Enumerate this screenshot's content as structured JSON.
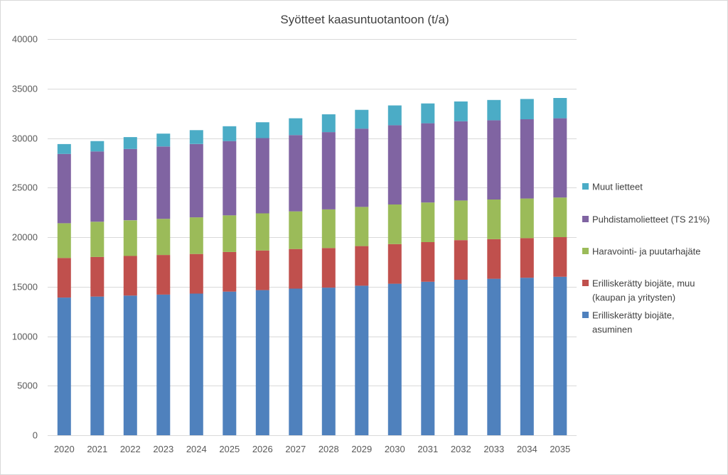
{
  "chart_data": {
    "type": "bar",
    "stacked": true,
    "title": "Syötteet kaasuntuotantoon (t/a)",
    "xlabel": "",
    "ylabel": "",
    "ylim": [
      0,
      40000
    ],
    "yticks": [
      0,
      5000,
      10000,
      15000,
      20000,
      25000,
      30000,
      35000,
      40000
    ],
    "grid": true,
    "legend_position": "right",
    "categories": [
      "2020",
      "2021",
      "2022",
      "2023",
      "2024",
      "2025",
      "2026",
      "2027",
      "2028",
      "2029",
      "2030",
      "2031",
      "2032",
      "2033",
      "2034",
      "2035"
    ],
    "series": [
      {
        "name": "Erilliskerätty biojäte, asuminen",
        "legend_lines": [
          "Erilliskerätty biojäte,",
          "asuminen"
        ],
        "color": "#4f81bd",
        "values": [
          13900,
          14000,
          14100,
          14200,
          14300,
          14500,
          14650,
          14800,
          14900,
          15100,
          15300,
          15500,
          15700,
          15800,
          15900,
          16000
        ]
      },
      {
        "name": "Erilliskerätty biojäte, muu (kaupan ja yritysten)",
        "legend_lines": [
          "Erilliskerätty biojäte, muu",
          "(kaupan ja yritysten)"
        ],
        "color": "#c0504d",
        "values": [
          4000,
          4000,
          4000,
          4000,
          4000,
          4000,
          4000,
          4000,
          4000,
          4000,
          4000,
          4000,
          4000,
          4000,
          4000,
          4000
        ]
      },
      {
        "name": "Haravointi- ja puutarhajäte",
        "legend_lines": [
          "Haravointi- ja puutarhajäte"
        ],
        "color": "#9bbb59",
        "values": [
          3500,
          3550,
          3600,
          3650,
          3700,
          3700,
          3750,
          3800,
          3900,
          3950,
          4000,
          4000,
          4000,
          4000,
          4000,
          4000
        ]
      },
      {
        "name": "Puhdistamolietteet (TS 21%)",
        "legend_lines": [
          "Puhdistamolietteet (TS 21%)"
        ],
        "color": "#8064a2",
        "values": [
          7000,
          7100,
          7200,
          7300,
          7400,
          7500,
          7600,
          7700,
          7800,
          7900,
          8000,
          8000,
          8000,
          8000,
          8000,
          8000
        ]
      },
      {
        "name": "Muut lietteet",
        "legend_lines": [
          "Muut lietteet"
        ],
        "color": "#4bacc6",
        "values": [
          1000,
          1050,
          1200,
          1300,
          1400,
          1500,
          1600,
          1700,
          1800,
          1900,
          2000,
          2000,
          2000,
          2050,
          2050,
          2050
        ]
      }
    ]
  }
}
